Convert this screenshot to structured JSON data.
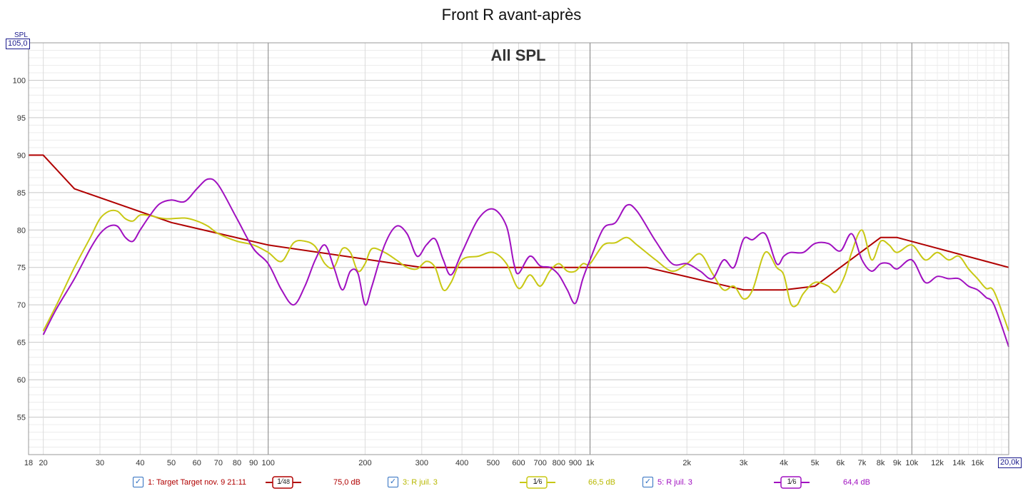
{
  "title": "Front R avant-après",
  "chart_data": {
    "type": "line",
    "title": "Front R avant-après",
    "overlay_title": "All SPL",
    "ylabel": "SPL",
    "x_scale": "log",
    "xlim": [
      18,
      20000
    ],
    "ylim": [
      50,
      105
    ],
    "grid": true,
    "y_ticks": [
      55,
      60,
      65,
      70,
      75,
      80,
      85,
      90,
      95,
      100
    ],
    "y_top_label": "105,0",
    "x_ticks": [
      {
        "v": 18,
        "label": "18"
      },
      {
        "v": 20,
        "label": "20"
      },
      {
        "v": 30,
        "label": "30"
      },
      {
        "v": 40,
        "label": "40"
      },
      {
        "v": 50,
        "label": "50"
      },
      {
        "v": 60,
        "label": "60"
      },
      {
        "v": 70,
        "label": "70"
      },
      {
        "v": 80,
        "label": "80"
      },
      {
        "v": 90,
        "label": "90"
      },
      {
        "v": 100,
        "label": "100"
      },
      {
        "v": 200,
        "label": "200"
      },
      {
        "v": 300,
        "label": "300"
      },
      {
        "v": 400,
        "label": "400"
      },
      {
        "v": 500,
        "label": "500"
      },
      {
        "v": 600,
        "label": "600"
      },
      {
        "v": 700,
        "label": "700"
      },
      {
        "v": 800,
        "label": "800"
      },
      {
        "v": 900,
        "label": "900"
      },
      {
        "v": 1000,
        "label": "1k"
      },
      {
        "v": 2000,
        "label": "2k"
      },
      {
        "v": 3000,
        "label": "3k"
      },
      {
        "v": 4000,
        "label": "4k"
      },
      {
        "v": 5000,
        "label": "5k"
      },
      {
        "v": 6000,
        "label": "6k"
      },
      {
        "v": 7000,
        "label": "7k"
      },
      {
        "v": 8000,
        "label": "8k"
      },
      {
        "v": 9000,
        "label": "9k"
      },
      {
        "v": 10000,
        "label": "10k"
      },
      {
        "v": 12000,
        "label": "12k"
      },
      {
        "v": 14000,
        "label": "14k"
      },
      {
        "v": 16000,
        "label": "16k"
      }
    ],
    "x_end_label": "20,0k",
    "series": [
      {
        "name": "1: Target Target nov. 9 21:11",
        "color": "#b00000",
        "smoothing_num": "1",
        "smoothing_den": "48",
        "value_label": "75,0 dB",
        "points": [
          [
            18,
            90.0
          ],
          [
            20,
            90.0
          ],
          [
            25,
            85.5
          ],
          [
            50,
            81.0
          ],
          [
            100,
            78.0
          ],
          [
            300,
            75.0
          ],
          [
            1500,
            75.0
          ],
          [
            3000,
            72.0
          ],
          [
            4000,
            72.0
          ],
          [
            5000,
            72.5
          ],
          [
            8000,
            79.0
          ],
          [
            9000,
            79.0
          ],
          [
            20000,
            75.0
          ]
        ]
      },
      {
        "name": "3: R juil. 3",
        "color": "#c8c814",
        "smoothing_num": "1",
        "smoothing_den": "6",
        "value_label": "66,5 dB",
        "points": [
          [
            20,
            66.5
          ],
          [
            22,
            70
          ],
          [
            25,
            75
          ],
          [
            28,
            79
          ],
          [
            30,
            81.5
          ],
          [
            32,
            82.5
          ],
          [
            34,
            82.5
          ],
          [
            36,
            81.5
          ],
          [
            38,
            81.2
          ],
          [
            40,
            82
          ],
          [
            43,
            81.9
          ],
          [
            48,
            81.5
          ],
          [
            55,
            81.6
          ],
          [
            60,
            81.2
          ],
          [
            65,
            80.5
          ],
          [
            70,
            79.5
          ],
          [
            80,
            78.5
          ],
          [
            90,
            78
          ],
          [
            100,
            77
          ],
          [
            110,
            75.8
          ],
          [
            120,
            78.3
          ],
          [
            130,
            78.5
          ],
          [
            140,
            77.8
          ],
          [
            150,
            75.5
          ],
          [
            160,
            75
          ],
          [
            170,
            77.5
          ],
          [
            180,
            77
          ],
          [
            190,
            74.5
          ],
          [
            200,
            75.5
          ],
          [
            210,
            77.5
          ],
          [
            230,
            77
          ],
          [
            250,
            76
          ],
          [
            270,
            75
          ],
          [
            290,
            74.8
          ],
          [
            310,
            75.8
          ],
          [
            330,
            75
          ],
          [
            350,
            72
          ],
          [
            370,
            73
          ],
          [
            400,
            76
          ],
          [
            450,
            76.5
          ],
          [
            500,
            77
          ],
          [
            550,
            75.5
          ],
          [
            600,
            72.2
          ],
          [
            650,
            74
          ],
          [
            700,
            72.5
          ],
          [
            750,
            74.5
          ],
          [
            800,
            75.5
          ],
          [
            850,
            74.5
          ],
          [
            900,
            74.5
          ],
          [
            950,
            75.5
          ],
          [
            1000,
            75.5
          ],
          [
            1100,
            78
          ],
          [
            1200,
            78.3
          ],
          [
            1300,
            79
          ],
          [
            1400,
            78
          ],
          [
            1600,
            76
          ],
          [
            1800,
            74.5
          ],
          [
            2000,
            75.5
          ],
          [
            2200,
            76.8
          ],
          [
            2400,
            74.2
          ],
          [
            2600,
            72
          ],
          [
            2800,
            72.5
          ],
          [
            3000,
            70.8
          ],
          [
            3200,
            72
          ],
          [
            3500,
            77
          ],
          [
            3800,
            75
          ],
          [
            4000,
            74
          ],
          [
            4200,
            70.2
          ],
          [
            4400,
            70
          ],
          [
            4600,
            71.5
          ],
          [
            5000,
            73
          ],
          [
            5500,
            72.5
          ],
          [
            5800,
            71.7
          ],
          [
            6200,
            74
          ],
          [
            6500,
            77
          ],
          [
            7000,
            80
          ],
          [
            7500,
            76
          ],
          [
            8000,
            78.5
          ],
          [
            8500,
            78
          ],
          [
            9000,
            77
          ],
          [
            10000,
            78
          ],
          [
            11000,
            76
          ],
          [
            12000,
            77
          ],
          [
            13000,
            76
          ],
          [
            14000,
            76.5
          ],
          [
            15000,
            74.8
          ],
          [
            16000,
            73.5
          ],
          [
            17000,
            72.2
          ],
          [
            18000,
            71.8
          ],
          [
            20000,
            66.5
          ]
        ]
      },
      {
        "name": "5: R juil. 3",
        "color": "#a010c0",
        "smoothing_num": "1",
        "smoothing_den": "6",
        "value_label": "64,4 dB",
        "points": [
          [
            20,
            66
          ],
          [
            22,
            69.5
          ],
          [
            25,
            73.5
          ],
          [
            28,
            77.5
          ],
          [
            30,
            79.5
          ],
          [
            32,
            80.5
          ],
          [
            34,
            80.5
          ],
          [
            36,
            79
          ],
          [
            38,
            78.5
          ],
          [
            40,
            80
          ],
          [
            43,
            82
          ],
          [
            46,
            83.5
          ],
          [
            50,
            84
          ],
          [
            55,
            83.8
          ],
          [
            60,
            85.5
          ],
          [
            65,
            86.8
          ],
          [
            70,
            86
          ],
          [
            80,
            81.5
          ],
          [
            90,
            77.5
          ],
          [
            100,
            75.5
          ],
          [
            110,
            72
          ],
          [
            120,
            70
          ],
          [
            130,
            72.5
          ],
          [
            140,
            76
          ],
          [
            150,
            78
          ],
          [
            160,
            75
          ],
          [
            170,
            72
          ],
          [
            180,
            74.5
          ],
          [
            190,
            74.2
          ],
          [
            200,
            70
          ],
          [
            210,
            72.5
          ],
          [
            230,
            78
          ],
          [
            250,
            80.5
          ],
          [
            270,
            79.5
          ],
          [
            290,
            76.5
          ],
          [
            310,
            78
          ],
          [
            330,
            78.8
          ],
          [
            350,
            76
          ],
          [
            370,
            74
          ],
          [
            400,
            77
          ],
          [
            450,
            81.5
          ],
          [
            500,
            82.8
          ],
          [
            550,
            80.5
          ],
          [
            580,
            75.5
          ],
          [
            600,
            74.2
          ],
          [
            650,
            76.5
          ],
          [
            700,
            75.2
          ],
          [
            750,
            75
          ],
          [
            800,
            74
          ],
          [
            850,
            72
          ],
          [
            900,
            70.2
          ],
          [
            950,
            73.5
          ],
          [
            1000,
            76
          ],
          [
            1100,
            80.2
          ],
          [
            1200,
            81
          ],
          [
            1300,
            83.3
          ],
          [
            1400,
            82.5
          ],
          [
            1600,
            78.5
          ],
          [
            1800,
            75.5
          ],
          [
            2000,
            75.5
          ],
          [
            2200,
            74.5
          ],
          [
            2400,
            73.5
          ],
          [
            2600,
            76
          ],
          [
            2800,
            75
          ],
          [
            3000,
            78.8
          ],
          [
            3200,
            78.7
          ],
          [
            3500,
            79.5
          ],
          [
            3800,
            75.5
          ],
          [
            4000,
            76.5
          ],
          [
            4200,
            77
          ],
          [
            4600,
            77
          ],
          [
            5000,
            78.2
          ],
          [
            5500,
            78.2
          ],
          [
            6000,
            77.2
          ],
          [
            6500,
            79.5
          ],
          [
            7000,
            76
          ],
          [
            7500,
            74.5
          ],
          [
            8000,
            75.5
          ],
          [
            8500,
            75.5
          ],
          [
            9000,
            74.8
          ],
          [
            10000,
            76
          ],
          [
            11000,
            73
          ],
          [
            12000,
            73.8
          ],
          [
            13000,
            73.5
          ],
          [
            14000,
            73.5
          ],
          [
            15000,
            72.5
          ],
          [
            16000,
            72
          ],
          [
            17000,
            71
          ],
          [
            18000,
            70
          ],
          [
            20000,
            64.4
          ]
        ]
      }
    ]
  }
}
